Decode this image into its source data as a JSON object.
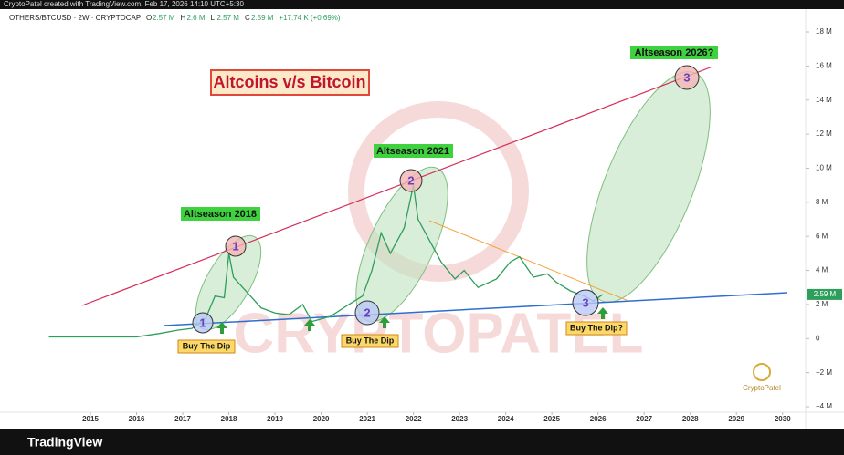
{
  "chart_data": {
    "type": "line",
    "top_bar": "CryptoPatel created with TradingView.com, Feb 17, 2026 14:10 UTC+5:30",
    "symbol": "OTHERS/BTCUSD · 2W · CRYPTOCAP",
    "ohlc": [
      {
        "key": "O",
        "value": "2.57 M"
      },
      {
        "key": "H",
        "value": "2.6 M"
      },
      {
        "key": "L",
        "value": "2.57 M"
      },
      {
        "key": "C",
        "value": "2.59 M"
      }
    ],
    "change": "+17.74 K (+0.69%)",
    "title": "Altcoins v/s Bitcoin",
    "annotations": [
      "Altseason 2018",
      "Altseason 2021",
      "Altseason 2026?",
      "Buy The Dip",
      "Buy The Dip",
      "Buy The Dip?"
    ],
    "circle_labels": [
      "1",
      "1",
      "2",
      "2",
      "3",
      "3"
    ],
    "watermark": "CRYPTOPATEL",
    "logo": "CryptoPatel",
    "footer": "TradingView",
    "x": [
      2014.1,
      2015,
      2016,
      2016.5,
      2016.9,
      2017.2,
      2017.5,
      2017.7,
      2017.9,
      2018.0,
      2018.1,
      2018.3,
      2018.5,
      2018.7,
      2019,
      2019.3,
      2019.6,
      2019.8,
      2020.2,
      2020.6,
      2020.9,
      2021.1,
      2021.3,
      2021.5,
      2021.8,
      2022.0,
      2022.1,
      2022.3,
      2022.6,
      2022.9,
      2023.1,
      2023.4,
      2023.8,
      2024.1,
      2024.3,
      2024.6,
      2024.9,
      2025.1,
      2025.4,
      2025.7,
      2025.9,
      2026.1
    ],
    "series": [
      {
        "name": "OTHERS/BTCUSD",
        "color": "#2e9e5b",
        "values": [
          100000,
          100000,
          100000,
          300000,
          500000,
          600000,
          1200000,
          2500000,
          2400000,
          5000000,
          3600000,
          3000000,
          2400000,
          1800000,
          1500000,
          1400000,
          2000000,
          1000000,
          1300000,
          2000000,
          2500000,
          4000000,
          6200000,
          5000000,
          6500000,
          9000000,
          7000000,
          6000000,
          4500000,
          3500000,
          4000000,
          3000000,
          3500000,
          4500000,
          4800000,
          3600000,
          3800000,
          3300000,
          2800000,
          2500000,
          2200000,
          2590000
        ],
        "last_label": "2.59 M"
      }
    ],
    "xlim": [
      2013.04,
      2030.5
    ],
    "xticks": [
      2015,
      2016,
      2017,
      2018,
      2019,
      2020,
      2021,
      2022,
      2023,
      2024,
      2025,
      2026,
      2027,
      2028,
      2029,
      2030
    ],
    "ylim": [
      -4320000,
      19340000
    ],
    "yticks": [
      {
        "value": -4000000,
        "label": "−4 M"
      },
      {
        "value": -2000000,
        "label": "−2 M"
      },
      0,
      {
        "value": 2000000,
        "label": "2 M"
      },
      {
        "value": 4000000,
        "label": "4 M"
      },
      {
        "value": 6000000,
        "label": "6 M"
      },
      {
        "value": 8000000,
        "label": "8 M"
      },
      {
        "value": 10000000,
        "label": "10 M"
      },
      {
        "value": 12000000,
        "label": "12 M"
      },
      {
        "value": 14000000,
        "label": "14 M"
      },
      {
        "value": 16000000,
        "label": "16 M"
      },
      {
        "value": 18000000,
        "label": "18 M"
      }
    ],
    "grid": false
  }
}
